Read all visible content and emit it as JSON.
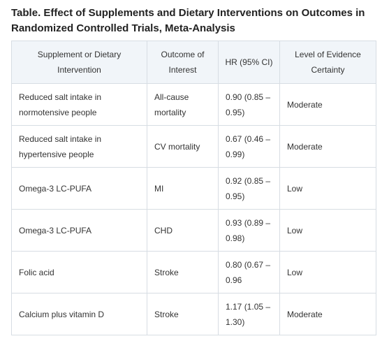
{
  "title": "Table. Effect of Supplements and Dietary Interventions on Outcomes in Randomized Controlled Trials, Meta-Analysis",
  "columns": [
    "Supplement or Dietary Intervention",
    "Outcome of Interest",
    "HR (95% CI)",
    "Level of Evidence Certainty"
  ],
  "rows": [
    {
      "intervention": "Reduced salt intake in normotensive people",
      "outcome": "All-cause mortality",
      "hr": "0.90 (0.85 – 0.95)",
      "evidence": "Moderate"
    },
    {
      "intervention": "Reduced salt intake in hypertensive people",
      "outcome": "CV mortality",
      "hr": "0.67 (0.46 – 0.99)",
      "evidence": "Moderate"
    },
    {
      "intervention": "Omega-3 LC-PUFA",
      "outcome": "MI",
      "hr": "0.92 (0.85 – 0.95)",
      "evidence": "Low"
    },
    {
      "intervention": "Omega-3 LC-PUFA",
      "outcome": "CHD",
      "hr": "0.93 (0.89 – 0.98)",
      "evidence": "Low"
    },
    {
      "intervention": "Folic acid",
      "outcome": "Stroke",
      "hr": "0.80 (0.67 – 0.96",
      "evidence": "Low"
    },
    {
      "intervention": "Calcium plus vitamin D",
      "outcome": "Stroke",
      "hr": "1.17 (1.05 – 1.30)",
      "evidence": "Moderate"
    }
  ]
}
